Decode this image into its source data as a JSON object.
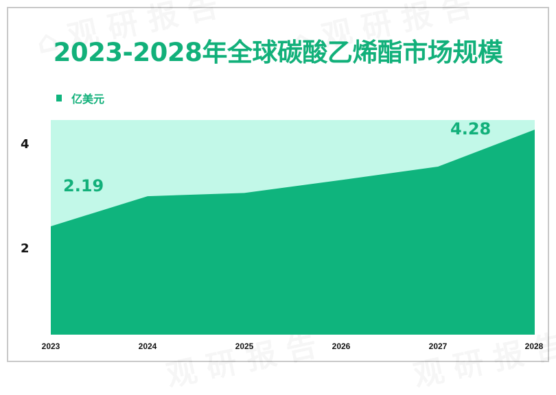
{
  "title": "2023-2028年全球碳酸乙烯酯市场规模",
  "legend": {
    "label": "亿美元"
  },
  "colors": {
    "area": "#0fb47d",
    "background_band": "#c2f8e8",
    "title": "#12b07a",
    "frame": "#c8c8c8"
  },
  "axis": {
    "y_ticks": [
      "4",
      "2"
    ],
    "x_ticks": [
      "2023",
      "2024",
      "2025",
      "2026",
      "2027",
      "2028"
    ]
  },
  "data_labels": {
    "first": "2.19",
    "last": "4.28"
  },
  "chart_data": {
    "type": "area",
    "title": "2023-2028年全球碳酸乙烯酯市场规模",
    "xlabel": "",
    "ylabel": "亿美元",
    "categories": [
      "2023",
      "2024",
      "2025",
      "2026",
      "2027",
      "2028"
    ],
    "series": [
      {
        "name": "亿美元",
        "values": [
          2.19,
          2.84,
          2.91,
          3.19,
          3.48,
          4.28
        ]
      }
    ],
    "annotations": [
      {
        "x": "2023",
        "text": "2.19"
      },
      {
        "x": "2028",
        "text": "4.28"
      }
    ],
    "y_tick_labels": [
      "2",
      "4"
    ],
    "ylim": [
      0,
      4.5
    ],
    "grid": false,
    "legend_position": "top-left"
  }
}
